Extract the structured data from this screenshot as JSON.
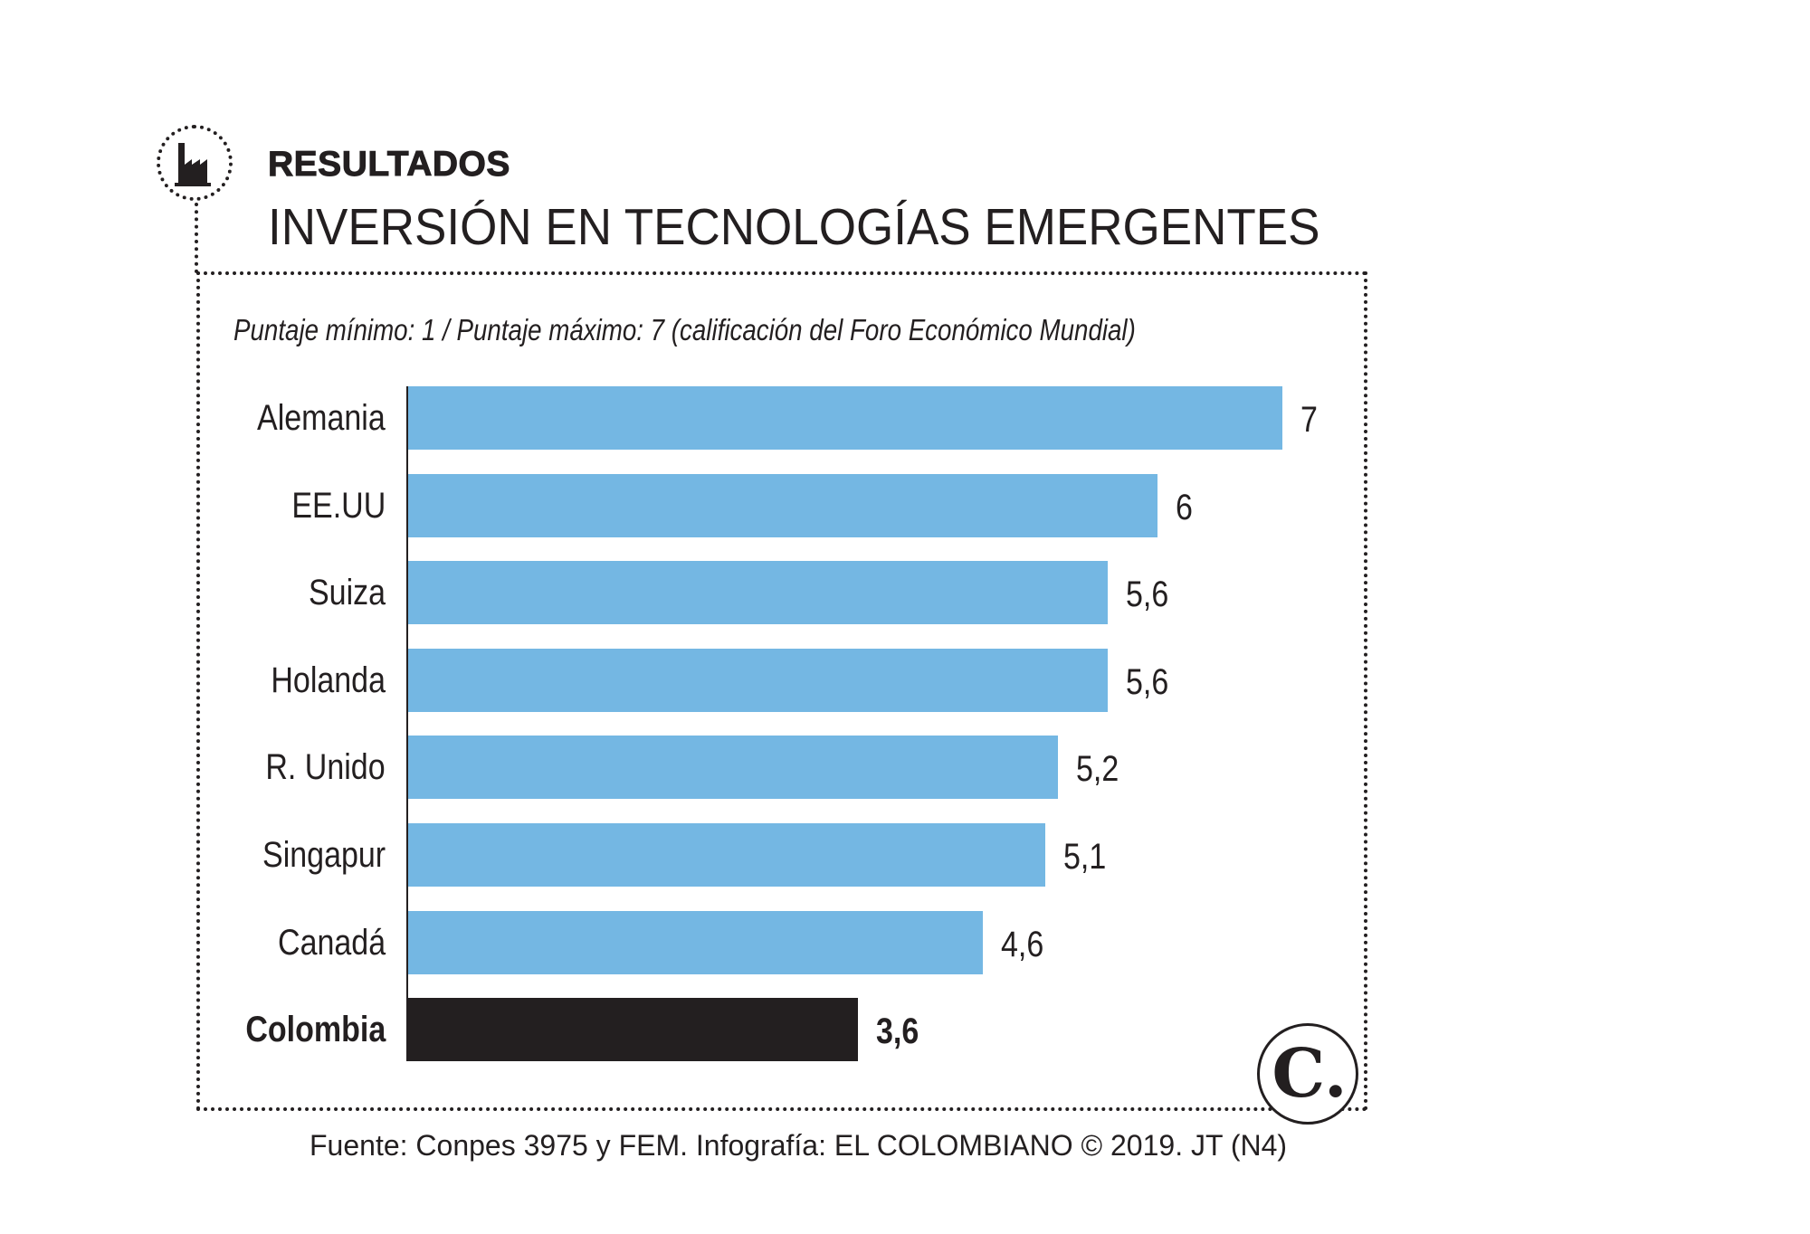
{
  "header": {
    "kicker": "RESULTADOS",
    "title": "INVERSIÓN EN TECNOLOGÍAS EMERGENTES",
    "icon": "factory-icon"
  },
  "chart_data": {
    "type": "bar",
    "orientation": "horizontal",
    "title": "INVERSIÓN EN TECNOLOGÍAS EMERGENTES",
    "subtitle": "Puntaje mínimo: 1 / Puntaje máximo: 7 (calificación del Foro Económico Mundial)",
    "categories": [
      "Alemania",
      "EE.UU",
      "Suiza",
      "Holanda",
      "R. Unido",
      "Singapur",
      "Canadá",
      "Colombia"
    ],
    "values": [
      7,
      6,
      5.6,
      5.6,
      5.2,
      5.1,
      4.6,
      3.6
    ],
    "value_labels": [
      "7",
      "6",
      "5,6",
      "5,6",
      "5,2",
      "5,1",
      "4,6",
      "3,6"
    ],
    "highlight": "Colombia",
    "xlim": [
      0,
      7
    ],
    "grid": false,
    "colors": {
      "default": "#74b7e3",
      "highlight": "#231f20"
    }
  },
  "footer": {
    "source": "Fuente: Conpes 3975 y FEM. Infografía: EL COLOMBIANO © 2019. JT (N4)",
    "logo": "C."
  }
}
